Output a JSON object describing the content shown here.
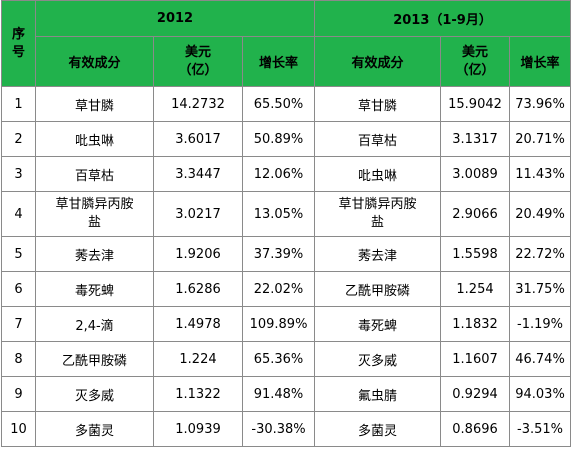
{
  "header": {
    "seq_label": "序\n号",
    "year_2012": "2012",
    "year_2013": "2013（1-9月）",
    "ingredient_label": "有效成分",
    "usd_label": "美元\n（亿）",
    "growth_label": "增长率"
  },
  "rows": [
    {
      "no": "1",
      "a_name": "草甘膦",
      "a_usd": "14.2732",
      "a_growth": "65.50%",
      "b_name": "草甘膦",
      "b_usd": "15.9042",
      "b_growth": "73.96%"
    },
    {
      "no": "2",
      "a_name": "吡虫啉",
      "a_usd": "3.6017",
      "a_growth": "50.89%",
      "b_name": "百草枯",
      "b_usd": "3.1317",
      "b_growth": "20.71%"
    },
    {
      "no": "3",
      "a_name": "百草枯",
      "a_usd": "3.3447",
      "a_growth": "12.06%",
      "b_name": "吡虫啉",
      "b_usd": "3.0089",
      "b_growth": "11.43%"
    },
    {
      "no": "4",
      "a_name": "草甘膦异丙胺\n盐",
      "a_usd": "3.0217",
      "a_growth": "13.05%",
      "b_name": "草甘膦异丙胺\n盐",
      "b_usd": "2.9066",
      "b_growth": "20.49%"
    },
    {
      "no": "5",
      "a_name": "莠去津",
      "a_usd": "1.9206",
      "a_growth": "37.39%",
      "b_name": "莠去津",
      "b_usd": "1.5598",
      "b_growth": "22.72%"
    },
    {
      "no": "6",
      "a_name": "毒死蜱",
      "a_usd": "1.6286",
      "a_growth": "22.02%",
      "b_name": "乙酰甲胺磷",
      "b_usd": "1.254",
      "b_growth": "31.75%"
    },
    {
      "no": "7",
      "a_name": "2,4-滴",
      "a_usd": "1.4978",
      "a_growth": "109.89%",
      "b_name": "毒死蜱",
      "b_usd": "1.1832",
      "b_growth": "-1.19%"
    },
    {
      "no": "8",
      "a_name": "乙酰甲胺磷",
      "a_usd": "1.224",
      "a_growth": "65.36%",
      "b_name": "灭多威",
      "b_usd": "1.1607",
      "b_growth": "46.74%"
    },
    {
      "no": "9",
      "a_name": "灭多威",
      "a_usd": "1.1322",
      "a_growth": "91.48%",
      "b_name": "氟虫腈",
      "b_usd": "0.9294",
      "b_growth": "94.03%"
    },
    {
      "no": "10",
      "a_name": "多菌灵",
      "a_usd": "1.0939",
      "a_growth": "-30.38%",
      "b_name": "多菌灵",
      "b_usd": "0.8696",
      "b_growth": "-3.51%"
    }
  ],
  "colors": {
    "header_bg": "#21b24c",
    "border": "#8a8a8a"
  }
}
